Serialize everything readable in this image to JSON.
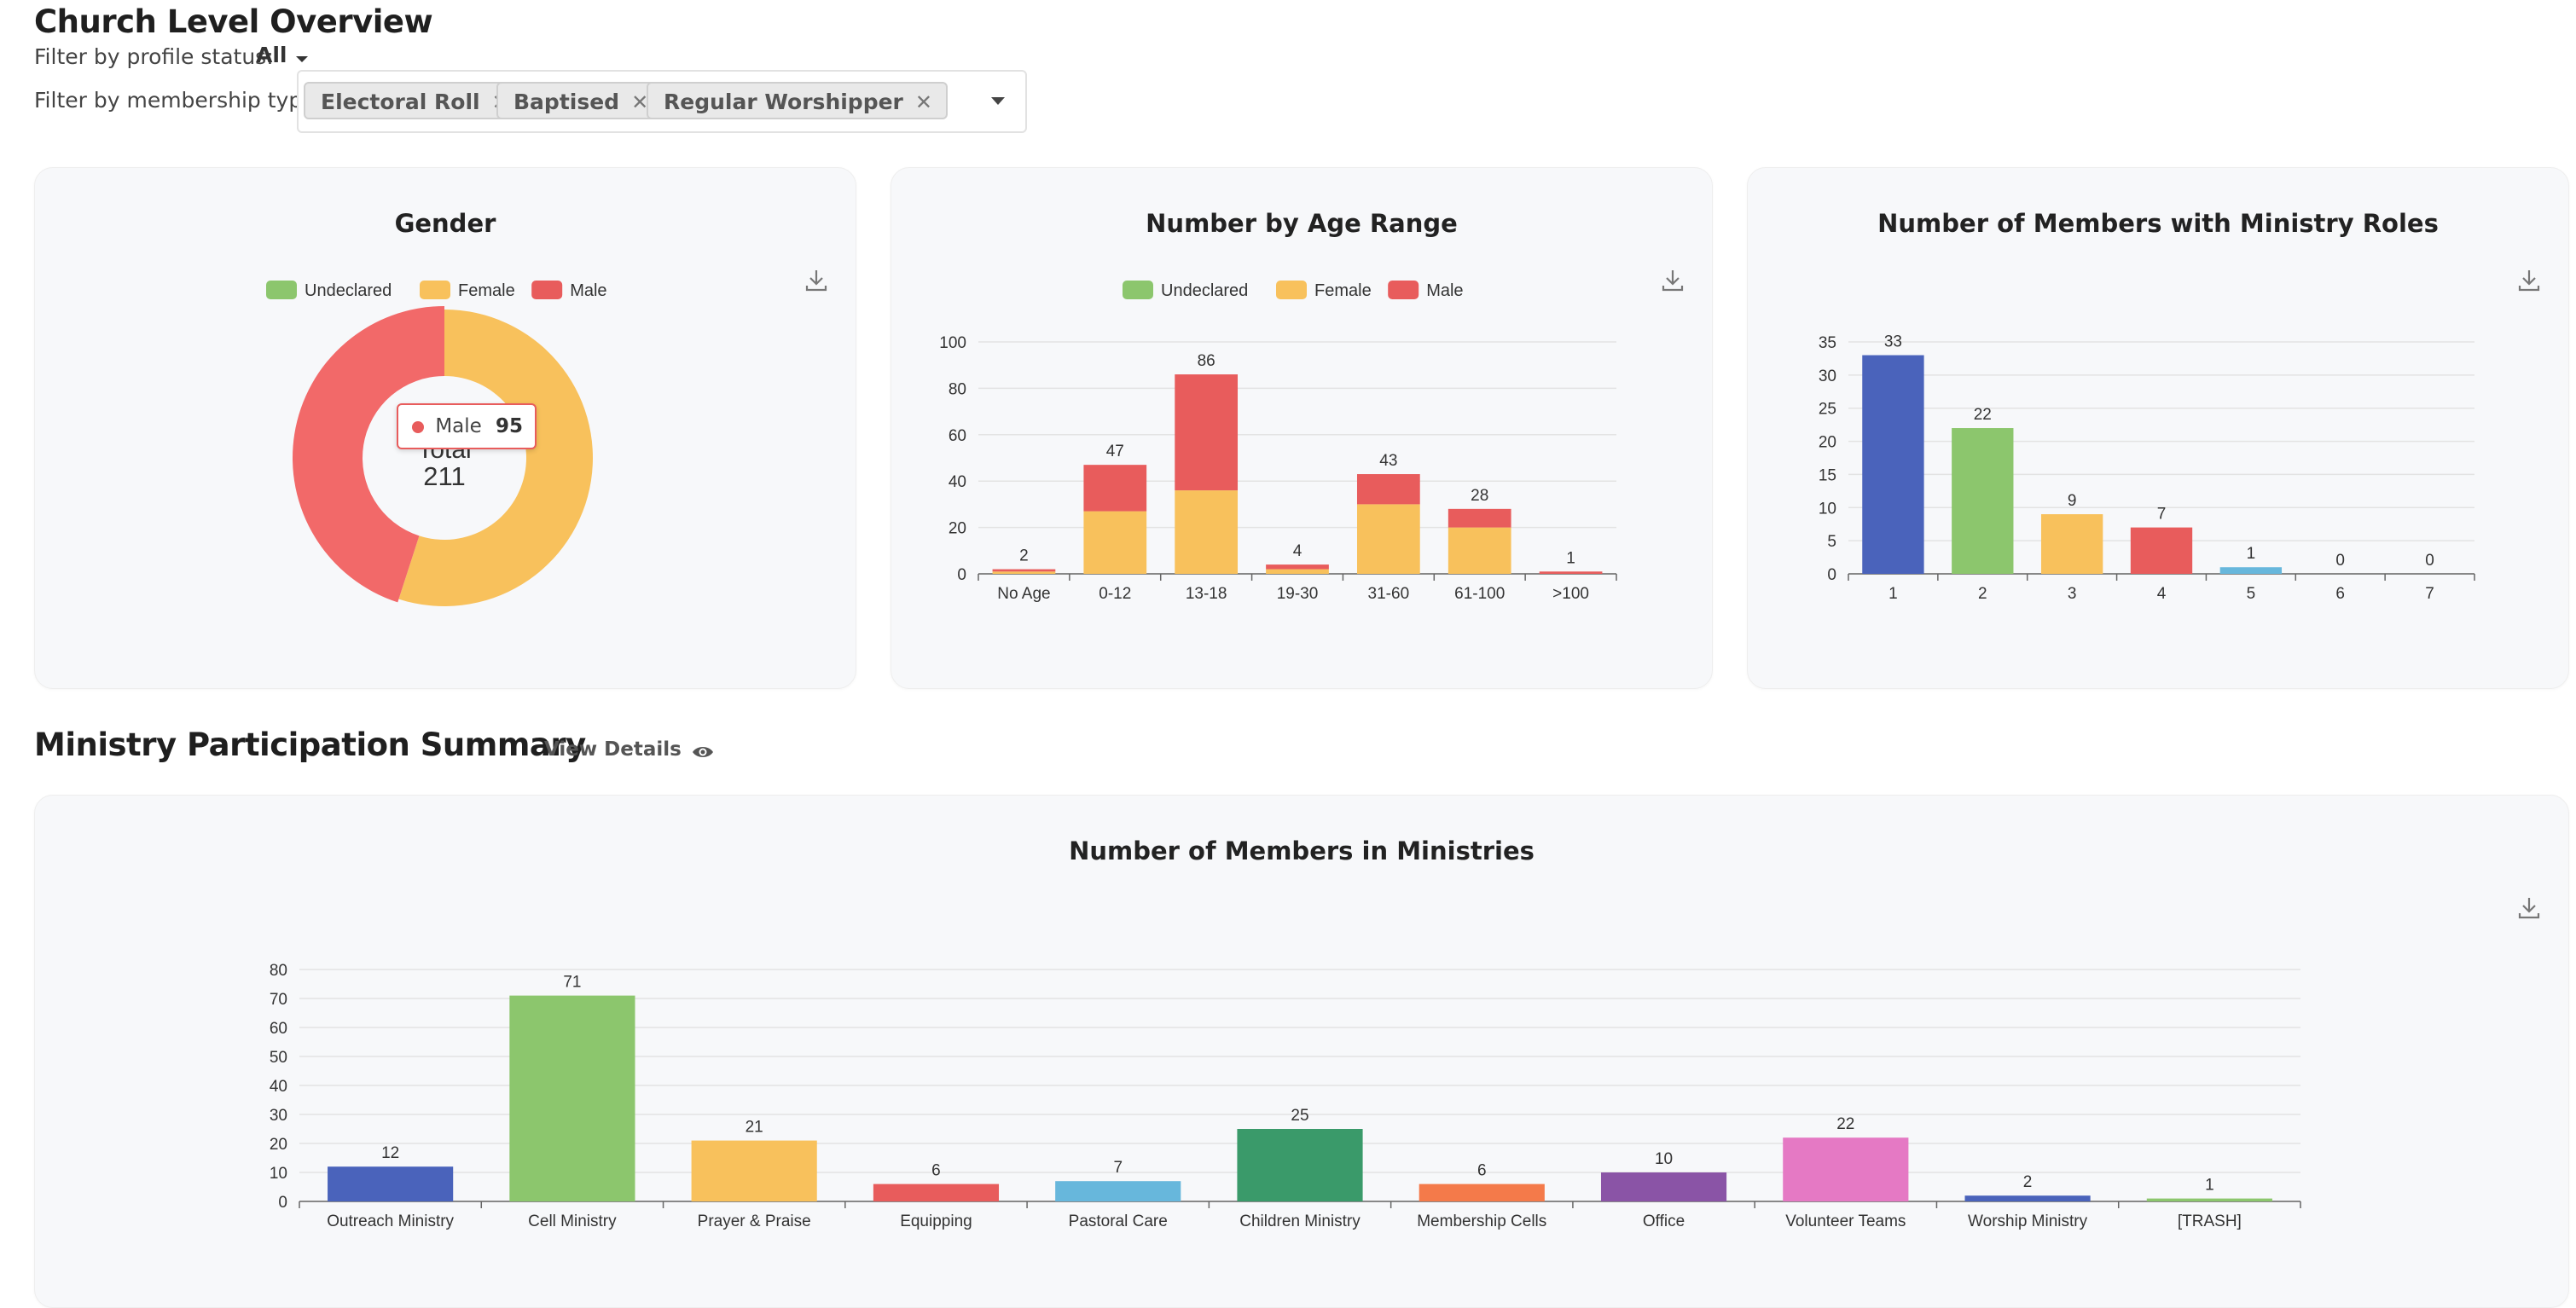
{
  "page": {
    "title": "Church Level Overview",
    "filter_status_label": "Filter by profile status:",
    "filter_status_value": "All",
    "filter_membership_label": "Filter by membership type:",
    "membership_chips": [
      "Electoral Roll",
      "Baptised",
      "Regular Worshipper"
    ]
  },
  "colors": {
    "undeclared": "#8cc66d",
    "female": "#f8c15c",
    "male": "#e85c5c"
  },
  "gender_card": {
    "title": "Gender",
    "legend": [
      "Undeclared",
      "Female",
      "Male"
    ],
    "center_label": "Total",
    "center_value": "211",
    "tooltip_label": "Male",
    "tooltip_value": "95",
    "chart_data": {
      "type": "pie",
      "categories": [
        "Undeclared",
        "Female",
        "Male"
      ],
      "values": [
        0,
        116,
        95
      ],
      "total": 211
    }
  },
  "age_card": {
    "title": "Number by Age Range",
    "legend": [
      "Undeclared",
      "Female",
      "Male"
    ],
    "chart_data": {
      "type": "bar",
      "stacked": true,
      "categories": [
        "No Age",
        "0-12",
        "13-18",
        "19-30",
        "31-60",
        "61-100",
        ">100"
      ],
      "series": [
        {
          "name": "Undeclared",
          "values": [
            0,
            0,
            0,
            0,
            0,
            0,
            0
          ]
        },
        {
          "name": "Female",
          "values": [
            1,
            27,
            36,
            2,
            30,
            20,
            0
          ]
        },
        {
          "name": "Male",
          "values": [
            1,
            20,
            50,
            2,
            13,
            8,
            1
          ]
        }
      ],
      "totals": [
        2,
        47,
        86,
        4,
        43,
        28,
        1
      ],
      "ylim": [
        0,
        100
      ],
      "yticks": [
        0,
        20,
        40,
        60,
        80,
        100
      ]
    }
  },
  "roles_card": {
    "title": "Number of Members with Ministry Roles",
    "chart_data": {
      "type": "bar",
      "categories": [
        "1",
        "2",
        "3",
        "4",
        "5",
        "6",
        "7"
      ],
      "values": [
        33,
        22,
        9,
        7,
        1,
        0,
        0
      ],
      "colors": [
        "#4a63bb",
        "#8cc66d",
        "#f8c15c",
        "#e85c5c",
        "#67b7dc",
        "#3a9a6a",
        "#f47a4a"
      ],
      "ylim": [
        0,
        35
      ],
      "yticks": [
        0,
        5,
        10,
        15,
        20,
        25,
        30,
        35
      ]
    }
  },
  "section2": {
    "title": "Ministry Participation Summary",
    "view_details": "View Details"
  },
  "ministries_card": {
    "title": "Number of Members in Ministries",
    "chart_data": {
      "type": "bar",
      "categories": [
        "Outreach Ministry",
        "Cell Ministry",
        "Prayer & Praise",
        "Equipping",
        "Pastoral Care",
        "Children Ministry",
        "Membership Cells",
        "Office",
        "Volunteer Teams",
        "Worship Ministry",
        "[TRASH]"
      ],
      "values": [
        12,
        71,
        21,
        6,
        7,
        25,
        6,
        10,
        22,
        2,
        1
      ],
      "colors": [
        "#4a63bb",
        "#8cc66d",
        "#f8c15c",
        "#e85c5c",
        "#67b7dc",
        "#3a9a6a",
        "#f47a4a",
        "#8a54a6",
        "#e579c4",
        "#4a63bb",
        "#8cc66d"
      ],
      "ylim": [
        0,
        80
      ],
      "yticks": [
        0,
        10,
        20,
        30,
        40,
        50,
        60,
        70,
        80
      ]
    }
  }
}
